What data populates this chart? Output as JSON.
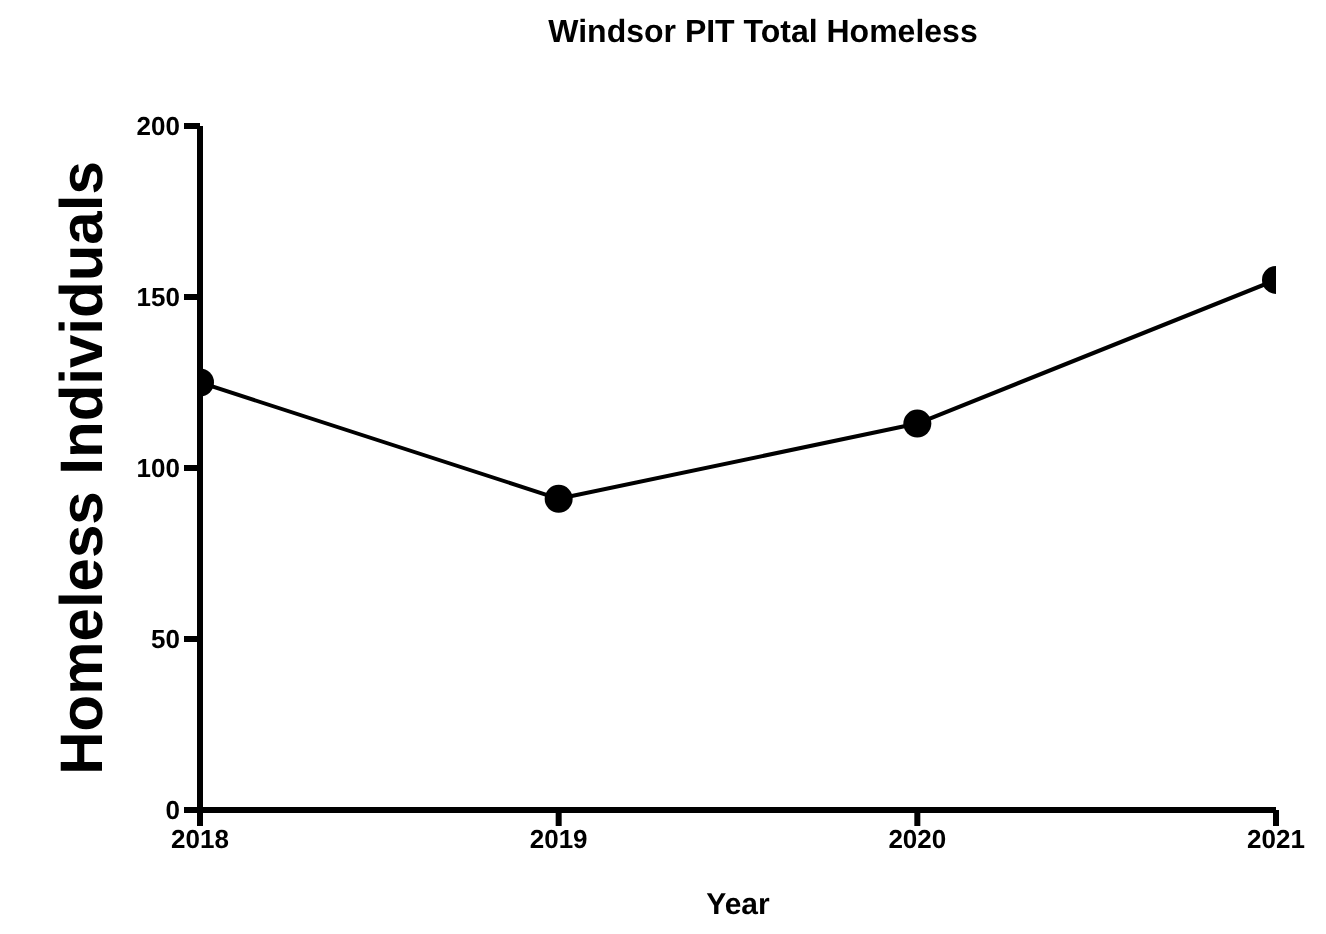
{
  "chart_data": {
    "type": "line",
    "title": "Windsor PIT Total Homeless",
    "xlabel": "Year",
    "ylabel": "Homeless Individuals",
    "x": [
      2018,
      2019,
      2020,
      2021
    ],
    "series": [
      {
        "color": "#000000",
        "values": [
          125,
          91,
          113,
          155
        ]
      }
    ],
    "xlim": [
      2018,
      2021
    ],
    "xticks": [
      2018,
      2019,
      2020,
      2021
    ],
    "ylim": [
      0,
      200
    ],
    "yticks": [
      0,
      50,
      100,
      150,
      200
    ],
    "marker": "circle",
    "line_style": "solid",
    "grid": false,
    "legend": false
  }
}
